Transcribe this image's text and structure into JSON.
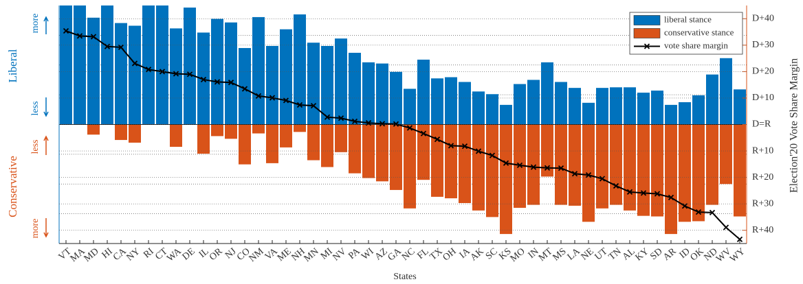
{
  "chart_data": {
    "type": "bar_line",
    "x_label": "States",
    "y2_label": "Election'20 Vote Share Margin",
    "liberal_label": "Liberal",
    "liberal_more": "more",
    "liberal_less": "less",
    "conservative_label": "Conservative",
    "conservative_less": "less",
    "conservative_more": "more",
    "categories": [
      "VT",
      "MA",
      "MD",
      "HI",
      "CA",
      "NY",
      "RI",
      "CT",
      "WA",
      "DE",
      "IL",
      "OR",
      "NJ",
      "CO",
      "NM",
      "VA",
      "ME",
      "NH",
      "MN",
      "MI",
      "NV",
      "PA",
      "WI",
      "AZ",
      "GA",
      "NC",
      "FL",
      "TX",
      "OH",
      "IA",
      "AK",
      "SC",
      "KS",
      "MO",
      "IN",
      "MT",
      "MS",
      "LA",
      "NE",
      "UT",
      "TN",
      "AL",
      "KY",
      "SD",
      "AR",
      "ID",
      "OK",
      "ND",
      "WV",
      "WY"
    ],
    "ylim": [
      -4,
      4
    ],
    "yticks": [
      -3,
      -2,
      -1,
      0,
      1,
      2,
      3
    ],
    "y2lim": [
      -45,
      45
    ],
    "y2ticks": [
      {
        "value": 40,
        "label": "D+40"
      },
      {
        "value": 30,
        "label": "D+30"
      },
      {
        "value": 20,
        "label": "D+20"
      },
      {
        "value": 10,
        "label": "D+10"
      },
      {
        "value": 0,
        "label": "D=R"
      },
      {
        "value": -10,
        "label": "R+10"
      },
      {
        "value": -20,
        "label": "R+20"
      },
      {
        "value": -30,
        "label": "R+30"
      },
      {
        "value": -40,
        "label": "R+40"
      }
    ],
    "grid": true,
    "legend": "upper right",
    "series": [
      {
        "name": "liberal stance",
        "color": "#0072bd",
        "type": "bar",
        "values": [
          4,
          4,
          3.59,
          4,
          3.41,
          3.32,
          4,
          4,
          3.23,
          3.93,
          3.09,
          3.55,
          3.43,
          2.57,
          3.61,
          2.64,
          3.2,
          3.7,
          2.75,
          2.64,
          2.89,
          2.41,
          2.09,
          2.05,
          1.77,
          1.2,
          2.18,
          1.55,
          1.59,
          1.43,
          1.11,
          1.02,
          0.66,
          1.36,
          1.5,
          2.09,
          1.43,
          1.23,
          0.73,
          1.23,
          1.25,
          1.25,
          1.07,
          1.14,
          0.66,
          0.75,
          0.98,
          1.68,
          2.23,
          1.18
        ]
      },
      {
        "name": "conservative stance",
        "color": "#d95319",
        "type": "bar",
        "values": [
          0,
          0,
          -0.34,
          0,
          -0.52,
          -0.61,
          0,
          0,
          -0.75,
          0,
          -0.98,
          -0.39,
          -0.48,
          -1.34,
          -0.3,
          -1.3,
          -0.77,
          -0.25,
          -1.2,
          -1.43,
          -0.93,
          -1.64,
          -1.8,
          -1.91,
          -2.2,
          -2.82,
          -1.86,
          -2.43,
          -2.48,
          -2.64,
          -2.89,
          -3.11,
          -3.68,
          -2.8,
          -2.7,
          -1.75,
          -2.7,
          -2.73,
          -3.27,
          -2.82,
          -2.7,
          -2.89,
          -3.07,
          -3.09,
          -3.68,
          -3.27,
          -3.25,
          -2.7,
          -2,
          -3.09
        ]
      },
      {
        "name": "vote share margin",
        "color": "#000000",
        "type": "line",
        "axis": "y2",
        "values": [
          35.4,
          33.5,
          33.2,
          29.5,
          29.2,
          23.1,
          20.8,
          20.0,
          19.2,
          19.0,
          17.0,
          16.1,
          15.9,
          13.5,
          10.8,
          10.1,
          9.1,
          7.4,
          7.1,
          2.8,
          2.4,
          1.2,
          0.6,
          0.3,
          0.2,
          -1.3,
          -3.4,
          -5.6,
          -8.0,
          -8.2,
          -10.1,
          -11.7,
          -14.6,
          -15.4,
          -16.1,
          -16.4,
          -16.5,
          -18.6,
          -19.1,
          -20.5,
          -23.2,
          -25.5,
          -25.9,
          -26.2,
          -27.6,
          -30.8,
          -33.1,
          -33.3,
          -38.9,
          -43.4
        ]
      }
    ]
  }
}
